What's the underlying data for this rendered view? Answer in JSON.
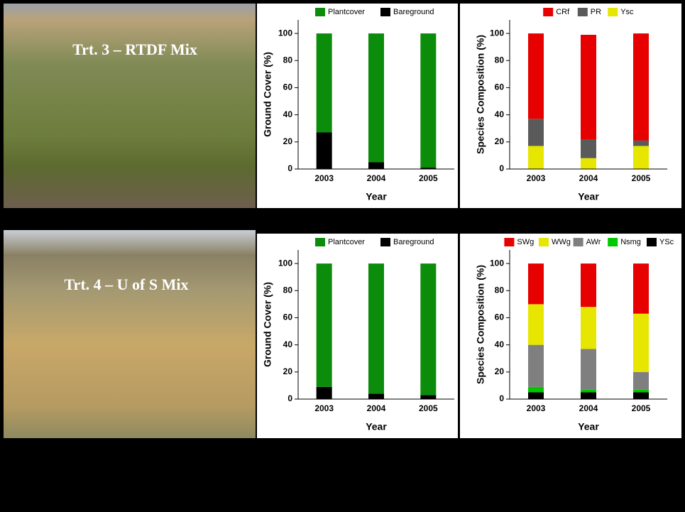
{
  "photos": [
    {
      "label": "Trt. 3 – RTDF Mix"
    },
    {
      "label": "Trt. 4 – U of S Mix"
    }
  ],
  "chart_data": [
    {
      "type": "bar",
      "stacked": true,
      "ylabel": "Ground Cover (%)",
      "xlabel": "Year",
      "categories": [
        "2003",
        "2004",
        "2005"
      ],
      "series": [
        {
          "name": "Plantcover",
          "color": "#0b8c0b",
          "values": [
            73,
            95,
            99
          ]
        },
        {
          "name": "Bareground",
          "color": "#000000",
          "values": [
            27,
            5,
            1
          ]
        }
      ],
      "ylim": [
        0,
        110
      ],
      "yticks": [
        0,
        20,
        40,
        60,
        80,
        100
      ]
    },
    {
      "type": "bar",
      "stacked": true,
      "ylabel": "Species Composition (%)",
      "xlabel": "Year",
      "categories": [
        "2003",
        "2004",
        "2005"
      ],
      "series": [
        {
          "name": "CRf",
          "color": "#e60000",
          "values": [
            63,
            77,
            79
          ]
        },
        {
          "name": "PR",
          "color": "#5a5a5a",
          "values": [
            20,
            14,
            4
          ]
        },
        {
          "name": "Ysc",
          "color": "#e6e600",
          "values": [
            17,
            8,
            17
          ]
        }
      ],
      "ylim": [
        0,
        110
      ],
      "yticks": [
        0,
        20,
        40,
        60,
        80,
        100
      ]
    },
    {
      "type": "bar",
      "stacked": true,
      "ylabel": "Ground Cover (%)",
      "xlabel": "Year",
      "categories": [
        "2003",
        "2004",
        "2005"
      ],
      "series": [
        {
          "name": "Plantcover",
          "color": "#0b8c0b",
          "values": [
            91,
            96,
            97
          ]
        },
        {
          "name": "Bareground",
          "color": "#000000",
          "values": [
            9,
            4,
            3
          ]
        }
      ],
      "ylim": [
        0,
        110
      ],
      "yticks": [
        0,
        20,
        40,
        60,
        80,
        100
      ]
    },
    {
      "type": "bar",
      "stacked": true,
      "ylabel": "Species Composition (%)",
      "xlabel": "Year",
      "categories": [
        "2003",
        "2004",
        "2005"
      ],
      "series": [
        {
          "name": "SWg",
          "color": "#e60000",
          "values": [
            30,
            32,
            37
          ]
        },
        {
          "name": "WWg",
          "color": "#e6e600",
          "values": [
            30,
            31,
            43
          ]
        },
        {
          "name": "AWr",
          "color": "#7f7f7f",
          "values": [
            31,
            30,
            13
          ]
        },
        {
          "name": "Nsmg",
          "color": "#00c800",
          "values": [
            4,
            2,
            2
          ]
        },
        {
          "name": "YSc",
          "color": "#000000",
          "values": [
            5,
            5,
            5
          ]
        }
      ],
      "ylim": [
        0,
        110
      ],
      "yticks": [
        0,
        20,
        40,
        60,
        80,
        100
      ]
    }
  ]
}
